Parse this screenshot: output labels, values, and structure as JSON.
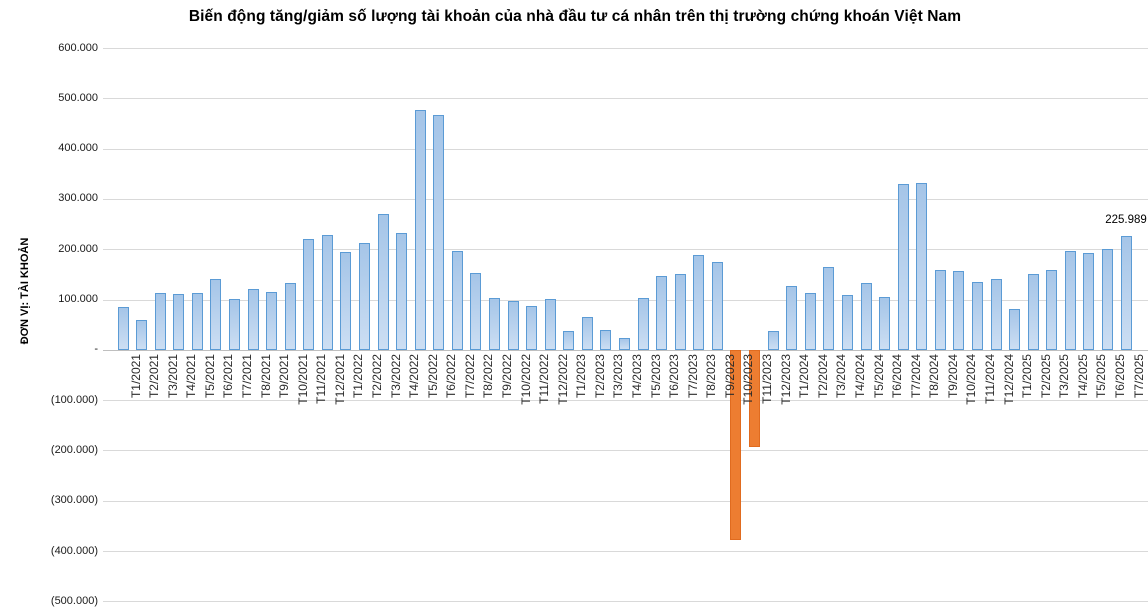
{
  "chart_data": {
    "type": "bar",
    "title": "Biến động tăng/giảm số lượng tài khoản của nhà đầu tư cá nhân trên thị trường chứng khoán Việt Nam",
    "y_axis_title": "ĐƠN VỊ: TÀI KHOẢN",
    "categories": [
      "T1/2021",
      "T2/2021",
      "T3/2021",
      "T4/2021",
      "T5/2021",
      "T6/2021",
      "T7/2021",
      "T8/2021",
      "T9/2021",
      "T10/2021",
      "T11/2021",
      "T12/2021",
      "T1/2022",
      "T2/2022",
      "T3/2022",
      "T4/2022",
      "T5/2022",
      "T6/2022",
      "T7/2022",
      "T8/2022",
      "T9/2022",
      "T10/2022",
      "T11/2022",
      "T12/2022",
      "T1/2023",
      "T2/2023",
      "T3/2023",
      "T4/2023",
      "T5/2023",
      "T6/2023",
      "T7/2023",
      "T8/2023",
      "T9/2023",
      "T10/2023",
      "T11/2023",
      "T12/2023",
      "T1/2024",
      "T2/2024",
      "T3/2024",
      "T4/2024",
      "T5/2024",
      "T6/2024",
      "T7/2024",
      "T8/2024",
      "T9/2024",
      "T10/2024",
      "T11/2024",
      "T12/2024",
      "T1/2025",
      "T2/2025",
      "T3/2025",
      "T4/2025",
      "T5/2025",
      "T6/2025",
      "T7/2025"
    ],
    "values": [
      86000,
      59000,
      114000,
      111000,
      114000,
      140000,
      101000,
      121000,
      115000,
      132000,
      221000,
      228000,
      195000,
      212000,
      271000,
      232000,
      476000,
      466000,
      197000,
      153000,
      103000,
      97000,
      88000,
      101000,
      37000,
      65000,
      40000,
      23000,
      104000,
      146000,
      151000,
      189000,
      174000,
      -378000,
      -193000,
      38000,
      126000,
      114000,
      165000,
      110000,
      132000,
      106000,
      330000,
      332000,
      159000,
      157000,
      135000,
      141000,
      81000,
      151000,
      158000,
      196000,
      192000,
      200000,
      225989
    ],
    "highlighted_categories": [
      "T10/2023",
      "T11/2023"
    ],
    "data_label": {
      "category": "T7/2025",
      "text": "225.989",
      "value": 225989
    },
    "y_ticks": [
      600000,
      500000,
      400000,
      300000,
      200000,
      100000,
      0,
      -100000,
      -200000,
      -300000,
      -400000,
      -500000
    ],
    "y_tick_labels": [
      "600.000",
      "500.000",
      "400.000",
      "300.000",
      "200.000",
      "100.000",
      "-",
      "(100.000)",
      "(200.000)",
      "(300.000)",
      "(400.000)",
      "(500.000)"
    ],
    "ylim": [
      -500000,
      600000
    ],
    "grid": true,
    "legend": "none",
    "colors": {
      "bar_fill_top": "#A5C5E8",
      "bar_fill_bottom": "#CCDEF3",
      "bar_border": "#5B9BD5",
      "highlight_fill": "#ED7D31",
      "highlight_border": "#E06B1F",
      "gridline": "#D9D9D9",
      "axis_line": "#BFBFBF",
      "text": "#000000"
    }
  }
}
